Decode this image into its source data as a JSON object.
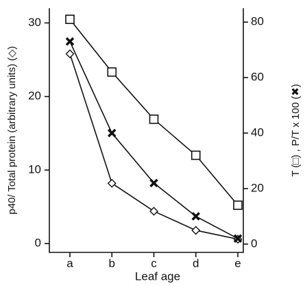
{
  "chart_data": {
    "type": "line",
    "x_label": "Leaf age",
    "y_label": "p40/ Total protein (arbitrary units) (◇)",
    "y2_label": "T (□) ,  P/T x 100 (✖)",
    "categories": [
      "a",
      "b",
      "c",
      "d",
      "e"
    ],
    "ylim": [
      -1.2,
      32
    ],
    "yticks": [
      0,
      10,
      20,
      30
    ],
    "y2lim": [
      -3,
      85
    ],
    "y2ticks": [
      0,
      20,
      40,
      60,
      80
    ],
    "series": [
      {
        "marker": "diamond",
        "color": "#111111",
        "values": [
          25.8,
          8.2,
          4.4,
          1.8,
          0.6
        ]
      },
      {
        "marker": "x",
        "color": "#111111",
        "axis": "y2",
        "values": [
          73,
          40,
          22,
          10,
          2
        ]
      },
      {
        "marker": "square",
        "color": "#111111",
        "axis": "y2",
        "values": [
          81,
          62,
          45,
          32,
          14
        ]
      }
    ]
  }
}
